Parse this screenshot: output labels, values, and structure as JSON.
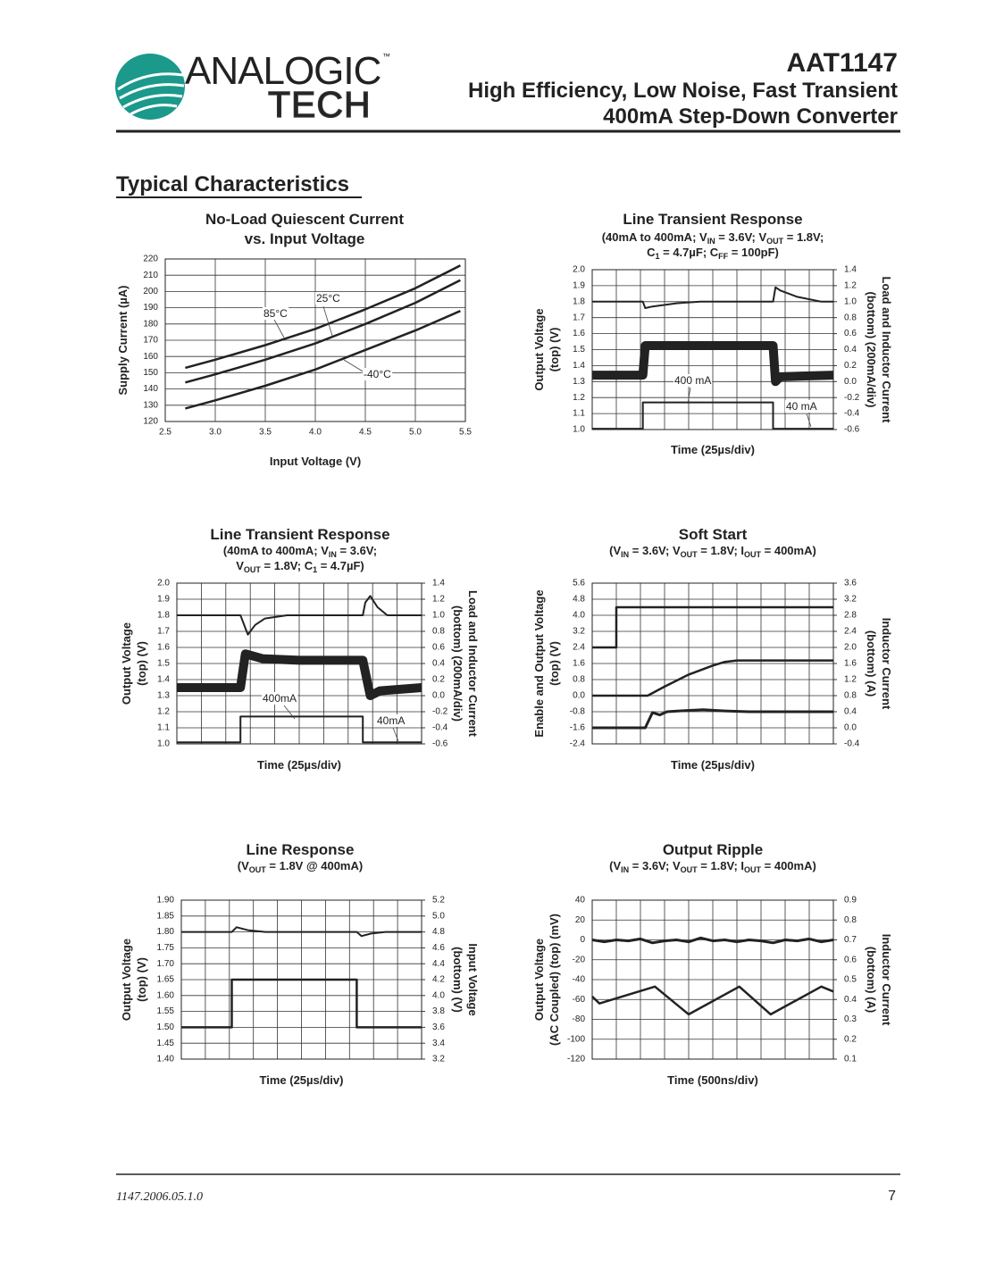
{
  "header": {
    "logo_top": "ANALOGIC",
    "logo_tm": "™",
    "logo_bottom": "TECH",
    "part": "AAT1147",
    "line1": "High Efficiency, Low Noise, Fast Transient",
    "line2": "400mA Step-Down Converter"
  },
  "section_title": "Typical Characteristics",
  "footer": {
    "doc": "1147.2006.05.1.0",
    "page": "7"
  },
  "chart_data": [
    {
      "type": "line",
      "title": [
        "No-Load Quiescent Current",
        "vs. Input Voltage"
      ],
      "subtitle": [],
      "xlabel": "Input Voltage (V)",
      "ylabel": [
        "Supply Current (µA)"
      ],
      "grid": true,
      "xlim": [
        2.5,
        5.5
      ],
      "xticks": [
        2.5,
        {
          "value": 3,
          "label": "3.0"
        },
        3.5,
        {
          "value": 4,
          "label": "4.0"
        },
        4.5,
        {
          "value": 5,
          "label": "5.0"
        },
        5.5
      ],
      "ylim": [
        120,
        220
      ],
      "yticks": [
        120,
        130,
        140,
        150,
        160,
        170,
        180,
        190,
        200,
        210,
        220
      ],
      "annotations": [
        "85°C",
        "25°C",
        "-40°C"
      ],
      "series": [
        {
          "color": "#222",
          "x": [
            2.7,
            3,
            3.5,
            4,
            4.5,
            5,
            5.45
          ],
          "values": [
            153,
            158,
            167,
            177,
            189,
            202,
            216
          ]
        },
        {
          "color": "#222",
          "x": [
            2.7,
            3,
            3.5,
            4,
            4.5,
            5,
            5.45
          ],
          "values": [
            144,
            149,
            158,
            168,
            180,
            193,
            207
          ]
        },
        {
          "color": "#222",
          "x": [
            2.7,
            3,
            3.5,
            4,
            4.5,
            5,
            5.45
          ],
          "values": [
            128,
            133,
            142,
            152,
            164,
            176,
            188
          ]
        }
      ]
    },
    {
      "type": "line",
      "title": [
        "Line Transient Response"
      ],
      "subtitle": [
        [
          "(40mA to 400mA; V",
          "IN",
          " = 3.6V; V",
          "OUT",
          " = 1.8V;"
        ],
        [
          "C",
          "1",
          " = 4.7µF; C",
          "FF",
          " = 100pF)"
        ]
      ],
      "xlabel": "Time (25µs/div)",
      "ylabel": [
        "Output Voltage",
        "(top) (V)"
      ],
      "y2label": [
        "Load and Inductor Current",
        "(bottom) (200mA/div)"
      ],
      "grid": true,
      "xlim": [
        0,
        10
      ],
      "ylim": [
        1.0,
        2.0
      ],
      "yticks": [
        {
          "value": 1,
          "label": "1.0"
        },
        1.1,
        1.2,
        1.3,
        1.4,
        1.5,
        1.6,
        1.7,
        1.8,
        1.9,
        {
          "value": 2,
          "label": "2.0"
        }
      ],
      "y2lim": [
        -0.6,
        1.4
      ],
      "y2ticks": [
        -0.6,
        -0.4,
        -0.2,
        {
          "value": 0,
          "label": "0.0"
        },
        0.2,
        0.4,
        0.6,
        0.8,
        {
          "value": 1,
          "label": "1.0"
        },
        1.2,
        1.4
      ],
      "annotations": [
        "400 mA",
        "40 mA"
      ],
      "series": [
        {
          "color": "#222",
          "x": [
            0,
            2.1,
            2.2,
            2.5,
            3.5,
            4.5,
            7.5,
            7.6,
            7.8,
            8.5,
            9.5,
            10
          ],
          "values": [
            1.8,
            1.8,
            1.76,
            1.77,
            1.79,
            1.8,
            1.8,
            1.89,
            1.87,
            1.83,
            1.8,
            1.8
          ]
        },
        {
          "color": "#222",
          "axis": "y2",
          "x": [
            0,
            2.1,
            2.2,
            7.5,
            7.6,
            7.8,
            10
          ],
          "values": [
            0.08,
            0.08,
            0.45,
            0.45,
            0.0,
            0.06,
            0.08
          ]
        },
        {
          "color": "#222",
          "axis": "y2",
          "x": [
            0,
            2.1,
            2.1,
            7.5,
            7.5,
            10
          ],
          "values": [
            -0.59,
            -0.59,
            -0.26,
            -0.26,
            -0.59,
            -0.59
          ]
        }
      ]
    },
    {
      "type": "line",
      "title": [
        "Line Transient Response"
      ],
      "subtitle": [
        [
          "(40mA to 400mA; V",
          "IN",
          " = 3.6V;"
        ],
        [
          "V",
          "OUT",
          " = 1.8V; C",
          "1",
          " = 4.7µF)"
        ]
      ],
      "xlabel": "Time (25µs/div)",
      "ylabel": [
        "Output Voltage",
        "(top) (V)"
      ],
      "y2label": [
        "Load and Inductor Current",
        "(bottom) (200mA/div)"
      ],
      "grid": true,
      "xlim": [
        0,
        10
      ],
      "ylim": [
        1.0,
        2.0
      ],
      "yticks": [
        {
          "value": 1,
          "label": "1.0"
        },
        1.1,
        1.2,
        1.3,
        1.4,
        1.5,
        1.6,
        1.7,
        1.8,
        1.9,
        {
          "value": 2,
          "label": "2.0"
        }
      ],
      "y2lim": [
        -0.6,
        1.4
      ],
      "y2ticks": [
        -0.6,
        -0.4,
        -0.2,
        {
          "value": 0,
          "label": "0.0"
        },
        0.2,
        0.4,
        0.6,
        0.8,
        {
          "value": 1,
          "label": "1.0"
        },
        1.2,
        1.4
      ],
      "annotations": [
        "400mA",
        "40mA"
      ],
      "series": [
        {
          "color": "#222",
          "x": [
            0,
            2.6,
            2.9,
            3.2,
            3.6,
            4.5,
            7.6,
            7.7,
            7.9,
            8.2,
            8.6,
            10
          ],
          "values": [
            1.8,
            1.8,
            1.68,
            1.74,
            1.78,
            1.8,
            1.8,
            1.88,
            1.92,
            1.85,
            1.8,
            1.8
          ]
        },
        {
          "color": "#222",
          "axis": "y2",
          "x": [
            0,
            2.6,
            2.8,
            3.5,
            5,
            7.6,
            7.9,
            8.3,
            10
          ],
          "values": [
            0.1,
            0.1,
            0.52,
            0.46,
            0.44,
            0.44,
            0.0,
            0.06,
            0.1
          ]
        },
        {
          "color": "#222",
          "axis": "y2",
          "x": [
            0,
            2.6,
            2.6,
            7.6,
            7.6,
            10
          ],
          "values": [
            -0.58,
            -0.58,
            -0.26,
            -0.26,
            -0.58,
            -0.58
          ]
        }
      ]
    },
    {
      "type": "line",
      "title": [
        "Soft Start"
      ],
      "subtitle": [
        [
          "(V",
          "IN",
          " = 3.6V; V",
          "OUT",
          " = 1.8V; I",
          "OUT",
          " = 400mA)"
        ]
      ],
      "xlabel": "Time (25µs/div)",
      "ylabel": [
        "Enable and Output Voltage",
        "(top) (V)"
      ],
      "y2label": [
        "Inductor Current",
        "(bottom) (A)"
      ],
      "grid": true,
      "xlim": [
        0,
        10
      ],
      "ylim": [
        -2.4,
        5.6
      ],
      "yticks": [
        -2.4,
        -1.6,
        -0.8,
        {
          "value": 0,
          "label": "0.0"
        },
        0.8,
        1.6,
        2.4,
        3.2,
        {
          "value": 4,
          "label": "4.0"
        },
        4.8,
        5.6
      ],
      "y2lim": [
        -0.4,
        3.6
      ],
      "y2ticks": [
        -0.4,
        {
          "value": 0,
          "label": "0.0"
        },
        0.4,
        0.8,
        1.2,
        1.6,
        {
          "value": 2,
          "label": "2.0"
        },
        2.4,
        2.8,
        3.2,
        3.6
      ],
      "annotations": [],
      "series": [
        {
          "color": "#222",
          "x": [
            0,
            1,
            1,
            10
          ],
          "values": [
            2.4,
            2.4,
            4.4,
            4.4
          ]
        },
        {
          "color": "#222",
          "x": [
            0,
            2.3,
            3,
            4,
            5,
            5.5,
            6,
            10
          ],
          "values": [
            0,
            0,
            0.45,
            1.05,
            1.5,
            1.68,
            1.75,
            1.75
          ]
        },
        {
          "color": "#222",
          "axis": "y2",
          "x": [
            0,
            2.2,
            2.5,
            2.8,
            3.1,
            3.6,
            4.6,
            5.5,
            6.5,
            10
          ],
          "values": [
            0,
            0,
            0.38,
            0.32,
            0.4,
            0.42,
            0.45,
            0.42,
            0.4,
            0.4
          ]
        }
      ]
    },
    {
      "type": "line",
      "title": [
        "Line Response"
      ],
      "subtitle": [
        [
          "(V",
          "OUT",
          " = 1.8V @ 400mA)"
        ]
      ],
      "xlabel": "Time (25µs/div)",
      "ylabel": [
        "Output Voltage",
        "(top) (V)"
      ],
      "y2label": [
        "Input Voltage",
        "(bottom) (V)"
      ],
      "grid": true,
      "xlim": [
        0,
        10
      ],
      "ylim": [
        1.4,
        1.9
      ],
      "yticks": [
        {
          "value": 1.4,
          "label": "1.40"
        },
        1.45,
        {
          "value": 1.5,
          "label": "1.50"
        },
        1.55,
        {
          "value": 1.6,
          "label": "1.60"
        },
        1.65,
        {
          "value": 1.7,
          "label": "1.70"
        },
        1.75,
        {
          "value": 1.8,
          "label": "1.80"
        },
        1.85,
        {
          "value": 1.9,
          "label": "1.90"
        }
      ],
      "y2lim": [
        3.2,
        5.2
      ],
      "y2ticks": [
        3.2,
        3.4,
        3.6,
        3.8,
        {
          "value": 4,
          "label": "4.0"
        },
        4.2,
        4.4,
        4.6,
        4.8,
        {
          "value": 5,
          "label": "5.0"
        },
        5.2
      ],
      "annotations": [],
      "series": [
        {
          "color": "#222",
          "x": [
            0,
            2.1,
            2.3,
            2.8,
            3.5,
            7.3,
            7.5,
            7.9,
            8.5,
            10
          ],
          "values": [
            1.8,
            1.8,
            1.815,
            1.805,
            1.8,
            1.8,
            1.787,
            1.795,
            1.8,
            1.8
          ]
        },
        {
          "color": "#222",
          "axis": "y2",
          "x": [
            0,
            2.1,
            2.1,
            7.3,
            7.3,
            10
          ],
          "values": [
            3.6,
            3.6,
            4.2,
            4.2,
            3.6,
            3.6
          ]
        }
      ]
    },
    {
      "type": "line",
      "title": [
        "Output Ripple"
      ],
      "subtitle": [
        [
          "(V",
          "IN",
          " = 3.6V; V",
          "OUT",
          " = 1.8V; I",
          "OUT",
          " = 400mA)"
        ]
      ],
      "xlabel": "Time (500ns/div)",
      "ylabel": [
        "Output Voltage",
        "(AC Coupled) (top) (mV)"
      ],
      "y2label": [
        "Inductor Current",
        "(bottom) (A)"
      ],
      "grid": true,
      "xlim": [
        0,
        10
      ],
      "ylim": [
        -120,
        40
      ],
      "yticks": [
        -120,
        -100,
        -80,
        -60,
        -40,
        -20,
        0,
        20,
        40
      ],
      "y2lim": [
        0.1,
        0.9
      ],
      "y2ticks": [
        0.1,
        0.2,
        0.3,
        0.4,
        0.5,
        0.6,
        0.7,
        0.8,
        0.9
      ],
      "annotations": [],
      "series": [
        {
          "color": "#222",
          "x": [
            0,
            0.5,
            1,
            1.5,
            2,
            2.5,
            3,
            3.5,
            4,
            4.5,
            5,
            5.5,
            6,
            6.5,
            7,
            7.5,
            8,
            8.5,
            9,
            9.5,
            10
          ],
          "values": [
            0,
            -2,
            0,
            -1,
            1,
            -3,
            -1,
            0,
            -2,
            2,
            -1,
            0,
            -2,
            0,
            -1,
            -3,
            0,
            -1,
            1,
            -2,
            0
          ]
        },
        {
          "color": "#222",
          "axis": "y2",
          "x": [
            0,
            0.3,
            2.6,
            4,
            6.1,
            7.4,
            9.5,
            10
          ],
          "values": [
            0.415,
            0.38,
            0.465,
            0.325,
            0.465,
            0.325,
            0.465,
            0.44
          ]
        }
      ]
    }
  ]
}
